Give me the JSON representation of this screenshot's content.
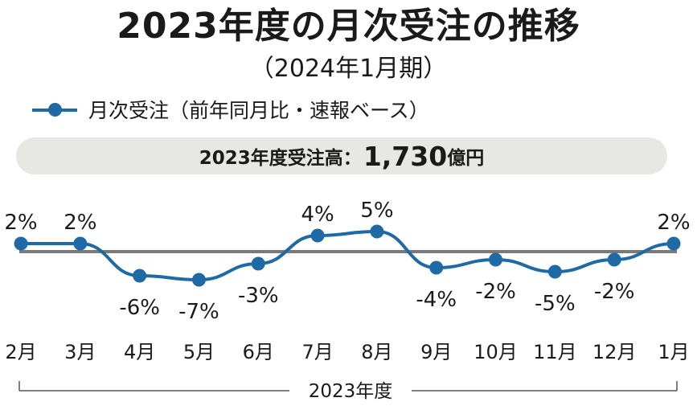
{
  "title": "2023年度の月次受注の推移",
  "subtitle": "（2024年1月期）",
  "legend": {
    "label": "月次受注（前年同月比・速報ベース）"
  },
  "summary": {
    "label": "2023年度受注高：",
    "value": "1,730",
    "unit": "億円"
  },
  "period_label": "2023年度",
  "colors": {
    "line": "#1f6aa5",
    "baseline": "#7a7a7a",
    "summary_bg": "#e7e7e3"
  },
  "chart_data": {
    "type": "line",
    "title": "2023年度の月次受注の推移",
    "subtitle": "（2024年1月期）",
    "categories": [
      "2月",
      "3月",
      "4月",
      "5月",
      "6月",
      "7月",
      "8月",
      "9月",
      "10月",
      "11月",
      "12月",
      "1月"
    ],
    "series": [
      {
        "name": "月次受注（前年同月比・速報ベース）",
        "values": [
          2,
          2,
          -6,
          -7,
          -3,
          4,
          5,
          -4,
          -2,
          -5,
          -2,
          2
        ]
      }
    ],
    "data_labels": [
      "2%",
      "2%",
      "-6%",
      "-7%",
      "-3%",
      "4%",
      "5%",
      "-4%",
      "-2%",
      "-5%",
      "-2%",
      "2%"
    ],
    "baseline": 0,
    "grid": false,
    "legend_position": "top-left"
  }
}
